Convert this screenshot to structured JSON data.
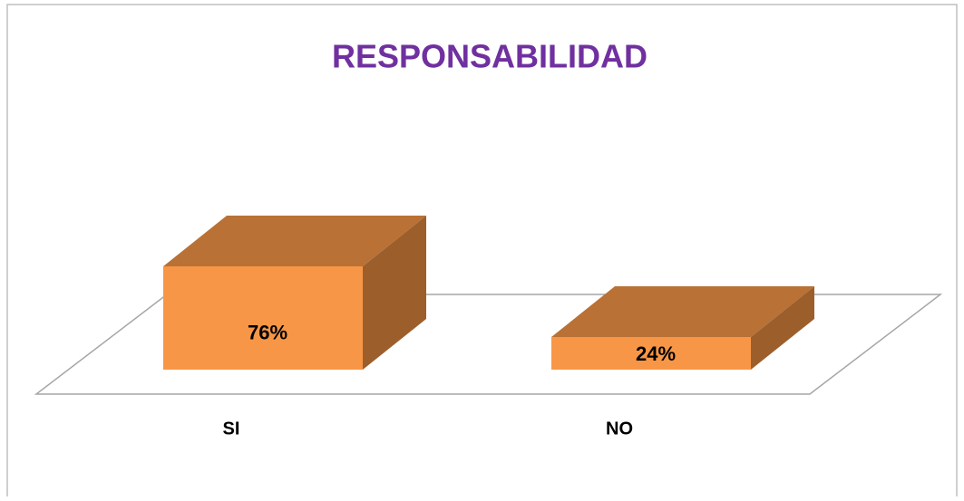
{
  "chart_data": {
    "type": "bar3d",
    "title": "RESPONSABILIDAD",
    "categories": [
      "SI",
      "NO"
    ],
    "values": [
      76,
      24
    ],
    "value_labels": [
      "76%",
      "24%"
    ],
    "color": "#f79646"
  }
}
